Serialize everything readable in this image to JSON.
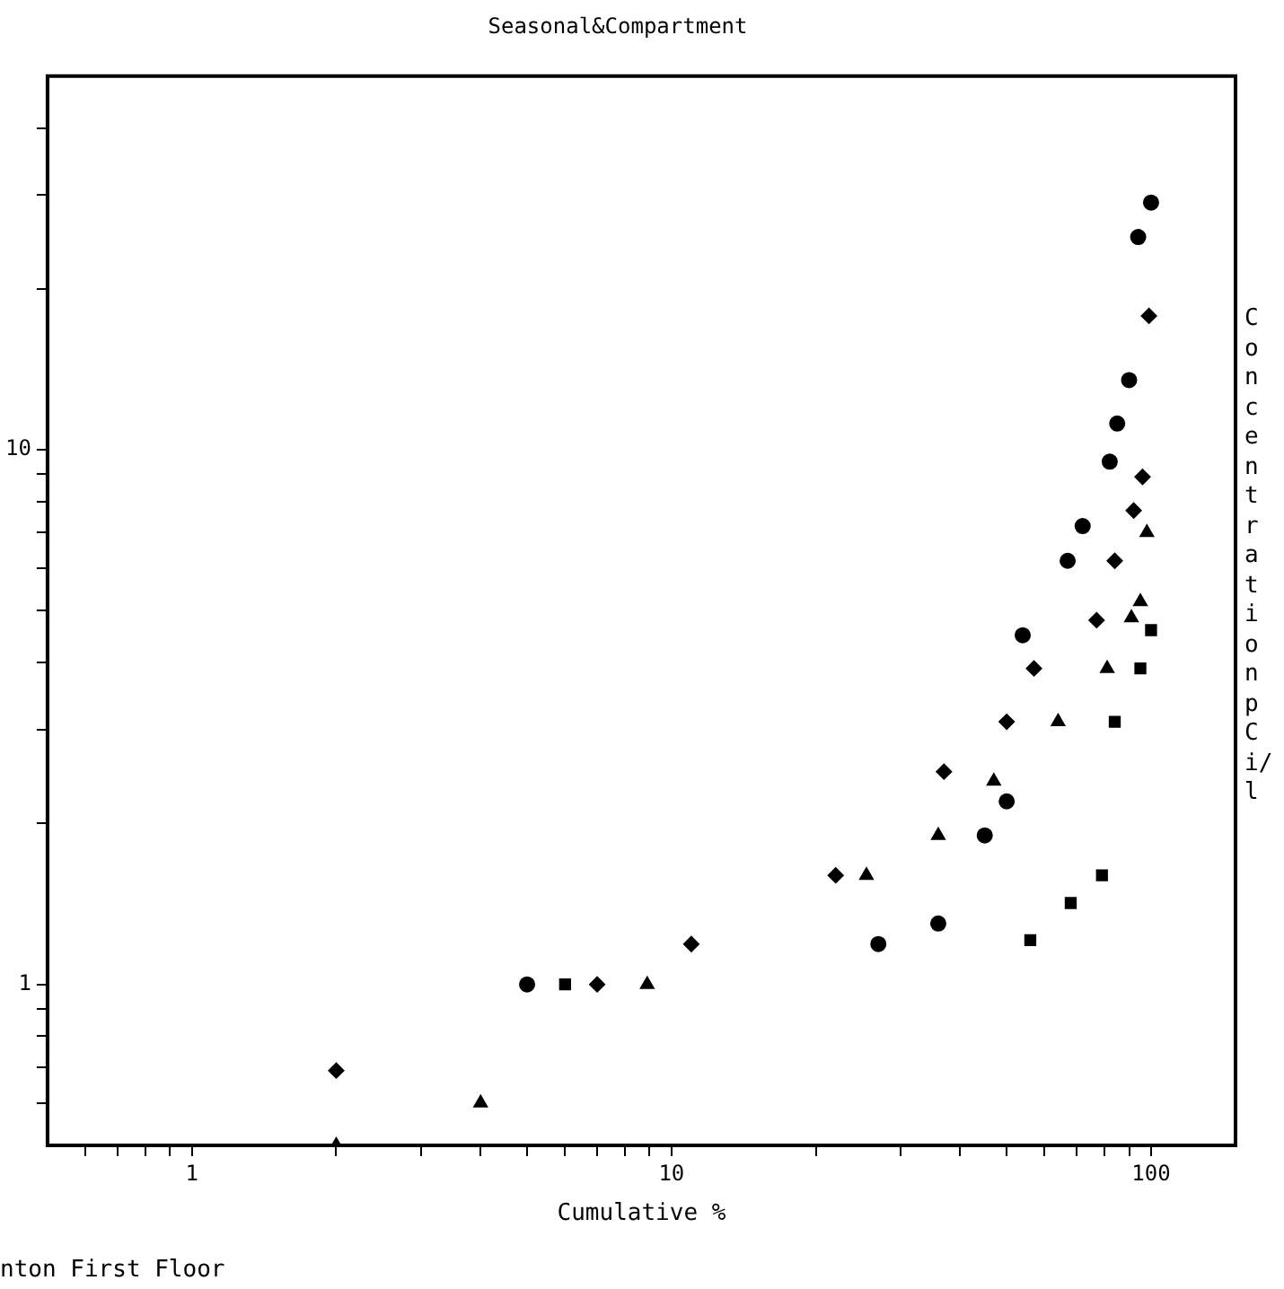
{
  "chart_data": {
    "type": "scatter",
    "title": "Seasonal&Compartment",
    "xlabel": "Cumulative %",
    "ylabel": "Concentration pCi/l",
    "annotations": [
      "nton First Floor"
    ],
    "log": "xy",
    "grid": false,
    "legend": false,
    "xlim": [
      0.5,
      150
    ],
    "ylim": [
      0.5,
      50
    ],
    "xticks": [
      {
        "value": 0.6,
        "label": null
      },
      {
        "value": 0.7,
        "label": null
      },
      {
        "value": 0.8,
        "label": null
      },
      {
        "value": 0.9,
        "label": null
      },
      1,
      {
        "value": 2,
        "label": null
      },
      {
        "value": 3,
        "label": null
      },
      {
        "value": 4,
        "label": null
      },
      {
        "value": 5,
        "label": null
      },
      {
        "value": 6,
        "label": null
      },
      {
        "value": 7,
        "label": null
      },
      {
        "value": 8,
        "label": null
      },
      {
        "value": 9,
        "label": null
      },
      10,
      {
        "value": 20,
        "label": null
      },
      {
        "value": 30,
        "label": null
      },
      {
        "value": 40,
        "label": null
      },
      {
        "value": 50,
        "label": null
      },
      {
        "value": 60,
        "label": null
      },
      {
        "value": 70,
        "label": null
      },
      {
        "value": 80,
        "label": null
      },
      {
        "value": 90,
        "label": null
      },
      100
    ],
    "yticks": [
      {
        "value": 0.6,
        "label": null
      },
      {
        "value": 0.7,
        "label": null
      },
      {
        "value": 0.8,
        "label": null
      },
      {
        "value": 0.9,
        "label": null
      },
      1,
      {
        "value": 2,
        "label": null
      },
      {
        "value": 3,
        "label": null
      },
      {
        "value": 4,
        "label": null
      },
      {
        "value": 5,
        "label": null
      },
      {
        "value": 6,
        "label": null
      },
      {
        "value": 7,
        "label": null
      },
      {
        "value": 8,
        "label": null
      },
      {
        "value": 9,
        "label": null
      },
      10,
      {
        "value": 20,
        "label": null
      },
      {
        "value": 30,
        "label": null
      },
      {
        "value": 40,
        "label": null
      }
    ],
    "series": [
      {
        "color": "#000000",
        "marker": "circle",
        "x": [
          5,
          27,
          36,
          45,
          50,
          54,
          67,
          72,
          82,
          85,
          90,
          94,
          100
        ],
        "values": [
          1.0,
          1.19,
          1.3,
          1.9,
          2.2,
          4.5,
          6.2,
          7.2,
          9.5,
          11.2,
          13.5,
          25,
          29
        ]
      },
      {
        "color": "#000000",
        "marker": "diamond",
        "x": [
          2,
          7,
          11,
          22,
          37,
          50,
          57,
          77,
          84,
          92,
          96,
          99
        ],
        "values": [
          0.69,
          1.0,
          1.19,
          1.6,
          2.5,
          3.1,
          3.9,
          4.8,
          6.2,
          7.7,
          8.9,
          17.8
        ]
      },
      {
        "color": "#000000",
        "marker": "triangle",
        "x": [
          2,
          4,
          8.9,
          25.5,
          36,
          47,
          64,
          81,
          91,
          95,
          98
        ],
        "values": [
          0.5,
          0.6,
          1.0,
          1.6,
          1.9,
          2.4,
          3.1,
          3.9,
          4.85,
          5.2,
          7.0
        ]
      },
      {
        "color": "#000000",
        "marker": "square",
        "x": [
          6,
          56,
          68,
          79,
          84,
          95,
          100
        ],
        "values": [
          1.0,
          1.21,
          1.42,
          1.6,
          3.1,
          3.9,
          4.6
        ]
      }
    ]
  }
}
